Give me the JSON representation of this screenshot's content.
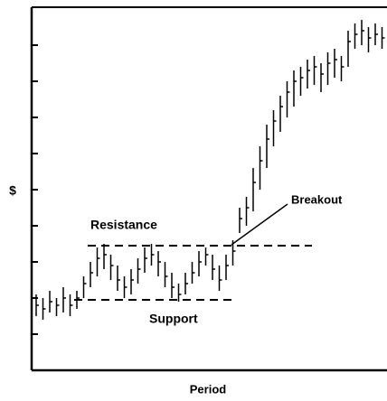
{
  "chart_data": {
    "type": "hilo",
    "ylabel": "$",
    "xlabel": "Period",
    "ylim": [
      0,
      10
    ],
    "yticks": [
      1,
      2,
      3,
      4,
      5,
      6,
      7,
      8,
      9
    ],
    "color": "#000000",
    "high": [
      2.1,
      2.0,
      2.2,
      2.0,
      2.3,
      2.1,
      2.2,
      2.6,
      3.0,
      3.4,
      3.5,
      3.2,
      2.9,
      2.6,
      2.8,
      3.1,
      3.4,
      3.5,
      3.3,
      3.0,
      2.7,
      2.4,
      2.7,
      3.0,
      3.3,
      3.4,
      3.2,
      2.9,
      3.2,
      3.6,
      4.5,
      4.8,
      5.6,
      6.2,
      6.8,
      7.2,
      7.6,
      8.0,
      8.3,
      8.4,
      8.6,
      8.7,
      8.5,
      8.8,
      8.9,
      8.7,
      9.4,
      9.6,
      9.7,
      9.5,
      9.6,
      9.5
    ],
    "low": [
      1.5,
      1.4,
      1.6,
      1.5,
      1.6,
      1.5,
      1.7,
      2.0,
      2.3,
      2.6,
      2.8,
      2.5,
      2.2,
      2.0,
      2.1,
      2.4,
      2.7,
      2.9,
      2.6,
      2.3,
      2.0,
      1.9,
      2.1,
      2.4,
      2.6,
      2.9,
      2.5,
      2.2,
      2.5,
      2.9,
      3.8,
      4.0,
      4.4,
      5.0,
      5.6,
      6.2,
      6.6,
      7.0,
      7.3,
      7.6,
      7.8,
      7.9,
      7.7,
      7.9,
      8.1,
      8.0,
      8.4,
      8.9,
      9.0,
      8.8,
      9.0,
      8.9
    ],
    "close": [
      1.8,
      1.7,
      1.9,
      1.8,
      2.0,
      1.8,
      2.0,
      2.4,
      2.7,
      3.1,
      3.2,
      2.9,
      2.5,
      2.3,
      2.5,
      2.8,
      3.1,
      3.2,
      3.0,
      2.6,
      2.3,
      2.1,
      2.4,
      2.7,
      3.0,
      3.2,
      2.8,
      2.5,
      2.9,
      3.3,
      4.2,
      4.5,
      5.2,
      5.8,
      6.4,
      6.9,
      7.3,
      7.7,
      8.0,
      8.1,
      8.3,
      8.4,
      8.2,
      8.5,
      8.6,
      8.4,
      9.1,
      9.3,
      9.4,
      9.2,
      9.3,
      9.2
    ],
    "resistance": {
      "label": "Resistance",
      "value": 3.45
    },
    "support": {
      "label": "Support",
      "value": 1.95
    },
    "breakout": {
      "label": "Breakout"
    }
  }
}
